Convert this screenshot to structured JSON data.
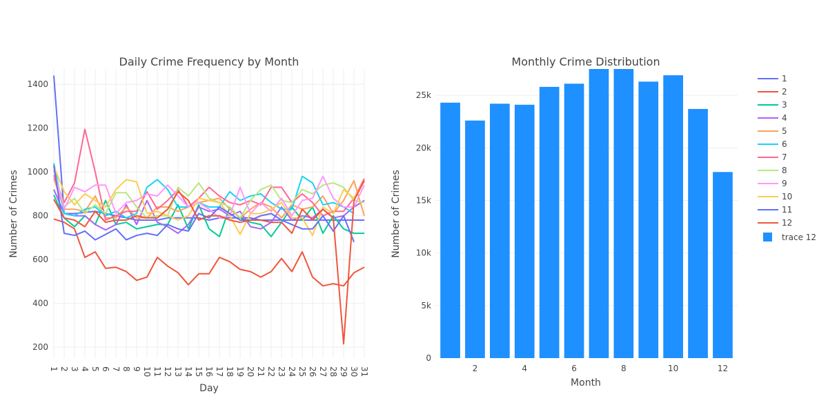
{
  "chart_data": [
    {
      "type": "line",
      "title": "Daily Crime Frequency by Month",
      "xlabel": "Day",
      "ylabel": "Number of Crimes",
      "xlim": [
        1,
        31
      ],
      "ylim": [
        150,
        1470
      ],
      "x_ticks": [
        1,
        2,
        3,
        4,
        5,
        6,
        7,
        8,
        9,
        10,
        11,
        12,
        13,
        14,
        15,
        16,
        17,
        18,
        19,
        20,
        21,
        22,
        23,
        24,
        25,
        26,
        27,
        28,
        29,
        30,
        31
      ],
      "y_ticks": [
        200,
        400,
        600,
        800,
        1000,
        1200,
        1400
      ],
      "grid": true,
      "x": [
        1,
        2,
        3,
        4,
        5,
        6,
        7,
        8,
        9,
        10,
        11,
        12,
        13,
        14,
        15,
        16,
        17,
        18,
        19,
        20,
        21,
        22,
        23,
        24,
        25,
        26,
        27,
        28,
        29,
        30,
        31
      ],
      "series": [
        {
          "name": "1",
          "color": "#636efa",
          "values": [
            1440,
            810,
            810,
            815,
            820,
            810,
            800,
            790,
            780,
            780,
            780,
            790,
            790,
            790,
            790,
            780,
            790,
            790,
            790,
            790,
            780,
            780,
            780,
            780,
            780,
            780,
            780,
            780,
            780,
            780,
            780
          ]
        },
        {
          "name": "2",
          "color": "#EF553B",
          "values": [
            785,
            770,
            740,
            610,
            635,
            560,
            565,
            545,
            505,
            520,
            610,
            570,
            540,
            485,
            535,
            535,
            610,
            590,
            555,
            545,
            520,
            545,
            605,
            545,
            635,
            520,
            480,
            490,
            480,
            540,
            565
          ]
        },
        {
          "name": "3",
          "color": "#00cc96",
          "values": [
            895,
            790,
            750,
            800,
            760,
            870,
            760,
            770,
            740,
            750,
            760,
            760,
            850,
            740,
            850,
            740,
            705,
            840,
            790,
            770,
            760,
            705,
            770,
            840,
            780,
            840,
            720,
            800,
            740,
            720,
            720
          ]
        },
        {
          "name": "4",
          "color": "#ab63fa",
          "values": [
            920,
            810,
            800,
            800,
            760,
            735,
            760,
            850,
            760,
            870,
            770,
            750,
            720,
            760,
            840,
            820,
            830,
            800,
            820,
            750,
            740,
            770,
            840,
            780,
            800,
            790,
            830,
            790,
            800,
            840,
            870
          ]
        },
        {
          "name": "5",
          "color": "#FFA15A",
          "values": [
            970,
            830,
            830,
            820,
            890,
            790,
            790,
            840,
            790,
            790,
            840,
            840,
            820,
            840,
            860,
            870,
            880,
            830,
            790,
            830,
            860,
            840,
            790,
            850,
            830,
            840,
            890,
            810,
            870,
            960,
            800
          ]
        },
        {
          "name": "6",
          "color": "#19d3f3",
          "values": [
            1040,
            810,
            800,
            830,
            840,
            800,
            820,
            790,
            810,
            930,
            965,
            920,
            840,
            840,
            860,
            840,
            840,
            910,
            870,
            890,
            900,
            860,
            830,
            830,
            980,
            950,
            850,
            860,
            840,
            810,
            null
          ]
        },
        {
          "name": "7",
          "color": "#FF6692",
          "values": [
            985,
            860,
            950,
            1195,
            1000,
            780,
            800,
            820,
            820,
            910,
            830,
            870,
            920,
            840,
            880,
            930,
            890,
            860,
            850,
            870,
            850,
            930,
            930,
            860,
            900,
            860,
            800,
            820,
            820,
            880,
            970
          ]
        },
        {
          "name": "8",
          "color": "#B6E880",
          "values": [
            1010,
            840,
            880,
            810,
            850,
            810,
            905,
            905,
            840,
            790,
            800,
            800,
            930,
            890,
            950,
            880,
            860,
            840,
            790,
            870,
            920,
            940,
            870,
            860,
            920,
            900,
            940,
            950,
            930,
            870,
            860
          ]
        },
        {
          "name": "9",
          "color": "#FF97FF",
          "values": [
            1005,
            830,
            930,
            910,
            940,
            940,
            810,
            860,
            870,
            900,
            890,
            940,
            890,
            840,
            860,
            830,
            790,
            800,
            930,
            810,
            860,
            820,
            880,
            800,
            870,
            880,
            980,
            880,
            840,
            840,
            940
          ]
        },
        {
          "name": "10",
          "color": "#FECB52",
          "values": [
            1025,
            910,
            850,
            900,
            870,
            840,
            920,
            965,
            955,
            810,
            820,
            800,
            780,
            800,
            880,
            870,
            860,
            800,
            715,
            810,
            810,
            830,
            860,
            790,
            790,
            710,
            840,
            810,
            920,
            880,
            960
          ]
        },
        {
          "name": "11",
          "color": "#636efa",
          "values": [
            1030,
            720,
            710,
            730,
            690,
            715,
            740,
            690,
            710,
            720,
            710,
            760,
            740,
            730,
            810,
            790,
            840,
            810,
            780,
            780,
            800,
            810,
            780,
            760,
            740,
            740,
            800,
            730,
            800,
            680,
            null
          ]
        },
        {
          "name": "12",
          "color": "#EF553B",
          "values": [
            875,
            790,
            780,
            750,
            820,
            770,
            780,
            780,
            800,
            790,
            790,
            830,
            910,
            870,
            780,
            800,
            800,
            780,
            770,
            780,
            780,
            770,
            770,
            720,
            830,
            780,
            830,
            790,
            215,
            870,
            960
          ]
        }
      ]
    },
    {
      "type": "bar",
      "title": "Monthly Crime Distribution",
      "xlabel": "Month",
      "ylabel": "Number of Crimes",
      "xlim": [
        0.4,
        12.6
      ],
      "ylim": [
        0,
        27500
      ],
      "x_ticks": [
        2,
        4,
        6,
        8,
        10,
        12
      ],
      "y_ticks": [
        0,
        5000,
        10000,
        15000,
        20000,
        25000
      ],
      "y_tick_labels": [
        "0",
        "5k",
        "10k",
        "15k",
        "20k",
        "25k"
      ],
      "grid": true,
      "categories": [
        1,
        2,
        3,
        4,
        5,
        6,
        7,
        8,
        9,
        10,
        11,
        12
      ],
      "values": [
        24300,
        22600,
        24200,
        24100,
        25800,
        26100,
        27500,
        27500,
        26300,
        26900,
        23700,
        17700
      ],
      "series_name": "trace 12",
      "color": "#1e90ff"
    }
  ],
  "legend": {
    "placement": "right"
  }
}
